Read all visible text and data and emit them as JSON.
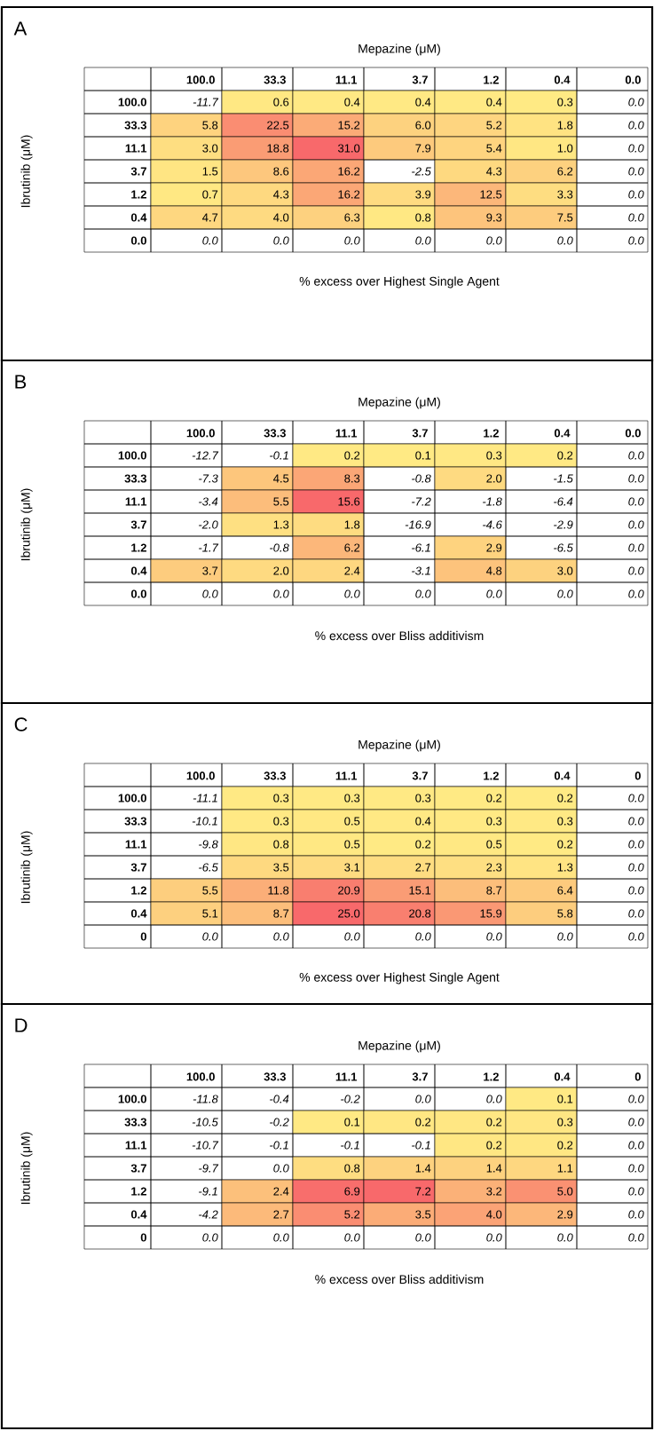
{
  "chart_data": [
    {
      "type": "heatmap",
      "title": "A",
      "xlabel": "Mepazine (μM)",
      "ylabel": "Ibrutinib (μM)",
      "annotations": [
        "% excess over Highest Single Agent"
      ],
      "categories": [
        "100.0",
        "33.3",
        "11.1",
        "3.7",
        "1.2",
        "0.4",
        "0.0"
      ],
      "y_categories": [
        "100.0",
        "33.3",
        "11.1",
        "3.7",
        "1.2",
        "0.4",
        "0.0"
      ],
      "cells": [
        [
          -11.7,
          0.6,
          0.4,
          0.4,
          0.4,
          0.3,
          0.0
        ],
        [
          5.8,
          22.5,
          15.2,
          6.0,
          5.2,
          1.8,
          0.0
        ],
        [
          3.0,
          18.8,
          31.0,
          7.9,
          5.4,
          1.0,
          0.0
        ],
        [
          1.5,
          8.6,
          16.2,
          -2.5,
          4.3,
          6.2,
          0.0
        ],
        [
          0.7,
          4.3,
          16.2,
          3.9,
          12.5,
          3.3,
          0.0
        ],
        [
          4.7,
          4.0,
          6.3,
          0.8,
          9.3,
          7.5,
          0.0
        ],
        [
          0.0,
          0.0,
          0.0,
          0.0,
          0.0,
          0.0,
          0.0
        ]
      ],
      "cell_labels": [
        [
          "-11.7",
          "0.6",
          "0.4",
          "0.4",
          "0.4",
          "0.3",
          "0.0"
        ],
        [
          "5.8",
          "22.5",
          "15.2",
          "6.0",
          "5.2",
          "1.8",
          "0.0"
        ],
        [
          "3.0",
          "18.8",
          "31.0",
          "7.9",
          "5.4",
          "1.0",
          "0.0"
        ],
        [
          "1.5",
          "8.6",
          "16.2",
          "-2.5",
          "4.3",
          "6.2",
          "0.0"
        ],
        [
          "0.7",
          "4.3",
          "16.2",
          "3.9",
          "12.5",
          "3.3",
          "0.0"
        ],
        [
          "4.7",
          "4.0",
          "6.3",
          "0.8",
          "9.3",
          "7.5",
          "0.0"
        ],
        [
          "0.0",
          "0.0",
          "0.0",
          "0.0",
          "0.0",
          "0.0",
          "0.0"
        ]
      ]
    },
    {
      "type": "heatmap",
      "title": "B",
      "xlabel": "Mepazine (μM)",
      "ylabel": "Ibrutinib (μM)",
      "annotations": [
        "% excess over Bliss additivism"
      ],
      "categories": [
        "100.0",
        "33.3",
        "11.1",
        "3.7",
        "1.2",
        "0.4",
        "0.0"
      ],
      "y_categories": [
        "100.0",
        "33.3",
        "11.1",
        "3.7",
        "1.2",
        "0.4",
        "0.0"
      ],
      "cells": [
        [
          -12.7,
          -0.1,
          0.2,
          0.1,
          0.3,
          0.2,
          0.0
        ],
        [
          -7.3,
          4.5,
          8.3,
          -0.8,
          2.0,
          -1.5,
          0.0
        ],
        [
          -3.4,
          5.5,
          15.6,
          -7.2,
          -1.8,
          -6.4,
          0.0
        ],
        [
          -2.0,
          1.3,
          1.8,
          -16.9,
          -4.6,
          -2.9,
          0.0
        ],
        [
          -1.7,
          -0.8,
          6.2,
          -6.1,
          2.9,
          -6.5,
          0.0
        ],
        [
          3.7,
          2.0,
          2.4,
          -3.1,
          4.8,
          3.0,
          0.0
        ],
        [
          0.0,
          0.0,
          0.0,
          0.0,
          0.0,
          0.0,
          0.0
        ]
      ],
      "cell_labels": [
        [
          "-12.7",
          "-0.1",
          "0.2",
          "0.1",
          "0.3",
          "0.2",
          "0.0"
        ],
        [
          "-7.3",
          "4.5",
          "8.3",
          "-0.8",
          "2.0",
          "-1.5",
          "0.0"
        ],
        [
          "-3.4",
          "5.5",
          "15.6",
          "-7.2",
          "-1.8",
          "-6.4",
          "0.0"
        ],
        [
          "-2.0",
          "1.3",
          "1.8",
          "-16.9",
          "-4.6",
          "-2.9",
          "0.0"
        ],
        [
          "-1.7",
          "-0.8",
          "6.2",
          "-6.1",
          "2.9",
          "-6.5",
          "0.0"
        ],
        [
          "3.7",
          "2.0",
          "2.4",
          "-3.1",
          "4.8",
          "3.0",
          "0.0"
        ],
        [
          "0.0",
          "0.0",
          "0.0",
          "0.0",
          "0.0",
          "0.0",
          "0.0"
        ]
      ]
    },
    {
      "type": "heatmap",
      "title": "C",
      "xlabel": "Mepazine (μM)",
      "ylabel": "Ibrutinib (μM)",
      "annotations": [
        "% excess over Highest Single Agent"
      ],
      "categories": [
        "100.0",
        "33.3",
        "11.1",
        "3.7",
        "1.2",
        "0.4",
        "0"
      ],
      "y_categories": [
        "100.0",
        "33.3",
        "11.1",
        "3.7",
        "1.2",
        "0.4",
        "0"
      ],
      "cells": [
        [
          -11.1,
          0.3,
          0.3,
          0.3,
          0.2,
          0.2,
          0.0
        ],
        [
          -10.1,
          0.3,
          0.5,
          0.4,
          0.3,
          0.3,
          0.0
        ],
        [
          -9.8,
          0.8,
          0.5,
          0.2,
          0.5,
          0.2,
          0.0
        ],
        [
          -6.5,
          3.5,
          3.1,
          2.7,
          2.3,
          1.3,
          0.0
        ],
        [
          5.5,
          11.8,
          20.9,
          15.1,
          8.7,
          6.4,
          0.0
        ],
        [
          5.1,
          8.7,
          25.0,
          20.8,
          15.9,
          5.8,
          0.0
        ],
        [
          0.0,
          0.0,
          0.0,
          0.0,
          0.0,
          0.0,
          0.0
        ]
      ],
      "cell_labels": [
        [
          "-11.1",
          "0.3",
          "0.3",
          "0.3",
          "0.2",
          "0.2",
          "0.0"
        ],
        [
          "-10.1",
          "0.3",
          "0.5",
          "0.4",
          "0.3",
          "0.3",
          "0.0"
        ],
        [
          "-9.8",
          "0.8",
          "0.5",
          "0.2",
          "0.5",
          "0.2",
          "0.0"
        ],
        [
          "-6.5",
          "3.5",
          "3.1",
          "2.7",
          "2.3",
          "1.3",
          "0.0"
        ],
        [
          "5.5",
          "11.8",
          "20.9",
          "15.1",
          "8.7",
          "6.4",
          "0.0"
        ],
        [
          "5.1",
          "8.7",
          "25.0",
          "20.8",
          "15.9",
          "5.8",
          "0.0"
        ],
        [
          "0.0",
          "0.0",
          "0.0",
          "0.0",
          "0.0",
          "0.0",
          "0.0"
        ]
      ]
    },
    {
      "type": "heatmap",
      "title": "D",
      "xlabel": "Mepazine (μM)",
      "ylabel": "Ibrutinib (μM)",
      "annotations": [
        "% excess over Bliss additivism"
      ],
      "categories": [
        "100.0",
        "33.3",
        "11.1",
        "3.7",
        "1.2",
        "0.4",
        "0"
      ],
      "y_categories": [
        "100.0",
        "33.3",
        "11.1",
        "3.7",
        "1.2",
        "0.4",
        "0"
      ],
      "cells": [
        [
          -11.8,
          -0.4,
          -0.2,
          0.0,
          0.0,
          0.1,
          0.0
        ],
        [
          -10.5,
          -0.2,
          0.1,
          0.2,
          0.2,
          0.3,
          0.0
        ],
        [
          -10.7,
          -0.1,
          -0.1,
          -0.1,
          0.2,
          0.2,
          0.0
        ],
        [
          -9.7,
          0.0,
          0.8,
          1.4,
          1.4,
          1.1,
          0.0
        ],
        [
          -9.1,
          2.4,
          6.9,
          7.2,
          3.2,
          5.0,
          0.0
        ],
        [
          -4.2,
          2.7,
          5.2,
          3.5,
          4.0,
          2.9,
          0.0
        ],
        [
          0.0,
          0.0,
          0.0,
          0.0,
          0.0,
          0.0,
          0.0
        ]
      ],
      "cell_labels": [
        [
          "-11.8",
          "-0.4",
          "-0.2",
          "0.0",
          "0.0",
          "0.1",
          "0.0"
        ],
        [
          "-10.5",
          "-0.2",
          "0.1",
          "0.2",
          "0.2",
          "0.3",
          "0.0"
        ],
        [
          "-10.7",
          "-0.1",
          "-0.1",
          "-0.1",
          "0.2",
          "0.2",
          "0.0"
        ],
        [
          "-9.7",
          "0.0",
          "0.8",
          "1.4",
          "1.4",
          "1.1",
          "0.0"
        ],
        [
          "-9.1",
          "2.4",
          "6.9",
          "7.2",
          "3.2",
          "5.0",
          "0.0"
        ],
        [
          "-4.2",
          "2.7",
          "5.2",
          "3.5",
          "4.0",
          "2.9",
          "0.0"
        ],
        [
          "0.0",
          "0.0",
          "0.0",
          "0.0",
          "0.0",
          "0.0",
          "0.0"
        ]
      ]
    }
  ]
}
